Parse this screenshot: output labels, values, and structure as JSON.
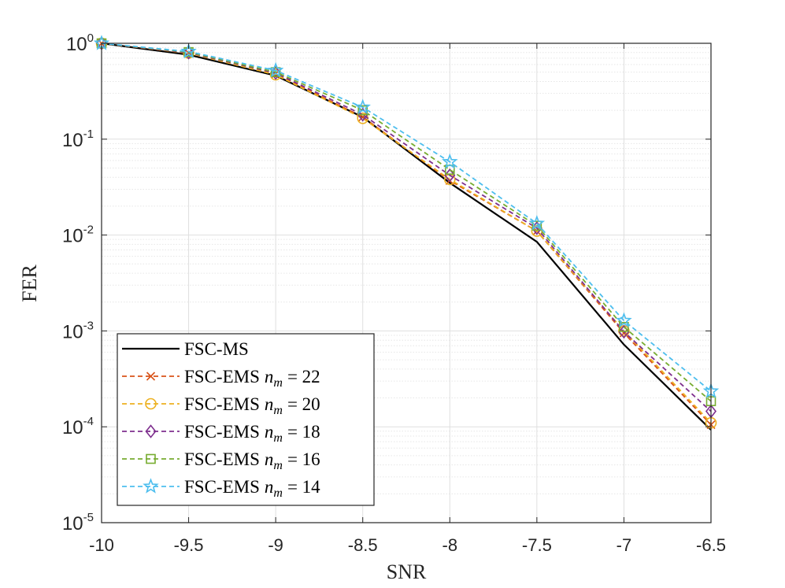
{
  "chart_data": {
    "type": "line",
    "title": "",
    "xlabel": "SNR",
    "ylabel": "FER",
    "xlim": [
      -10,
      -6.5
    ],
    "ylim": [
      1e-05,
      1
    ],
    "yscale": "log",
    "grid": true,
    "minor_grid": true,
    "legend_position": "bottom-left",
    "x": [
      -10,
      -9.5,
      -9,
      -8.5,
      -8,
      -7.5,
      -7,
      -6.5
    ],
    "x_ticks": [
      {
        "value": -10,
        "label": "-10"
      },
      {
        "value": -9.5,
        "label": "-9.5"
      },
      {
        "value": -9,
        "label": "-9"
      },
      {
        "value": -8.5,
        "label": "-8.5"
      },
      {
        "value": -8,
        "label": "-8"
      },
      {
        "value": -7.5,
        "label": "-7.5"
      },
      {
        "value": -7,
        "label": "-7"
      },
      {
        "value": -6.5,
        "label": "-6.5"
      }
    ],
    "y_ticks": [
      {
        "value": 1,
        "base": "10",
        "exp": "0"
      },
      {
        "value": 0.1,
        "base": "10",
        "exp": "-1"
      },
      {
        "value": 0.01,
        "base": "10",
        "exp": "-2"
      },
      {
        "value": 0.001,
        "base": "10",
        "exp": "-3"
      },
      {
        "value": 0.0001,
        "base": "10",
        "exp": "-4"
      },
      {
        "value": 1e-05,
        "base": "10",
        "exp": "-5"
      }
    ],
    "series": [
      {
        "name": "FSC-MS",
        "label": "FSC-MS",
        "param": "",
        "value_text": "",
        "color": "#000000",
        "dashed": false,
        "marker": "none",
        "values": [
          1.0,
          0.76,
          0.46,
          0.17,
          0.035,
          0.0085,
          0.00072,
          9.3e-05
        ]
      },
      {
        "name": "FSC-EMS n_m = 22",
        "label": "FSC-EMS",
        "param": "n",
        "param_sub": "m",
        "value_text": "= 22",
        "color": "#D95319",
        "dashed": true,
        "marker": "x",
        "values": [
          1.0,
          0.79,
          0.48,
          0.17,
          0.037,
          0.011,
          0.00095,
          0.000105
        ]
      },
      {
        "name": "FSC-EMS n_m = 20",
        "label": "FSC-EMS",
        "param": "n",
        "param_sub": "m",
        "value_text": "= 20",
        "color": "#EDB120",
        "dashed": true,
        "marker": "circle",
        "values": [
          1.0,
          0.79,
          0.47,
          0.165,
          0.038,
          0.011,
          0.001,
          0.00011
        ]
      },
      {
        "name": "FSC-EMS n_m = 18",
        "label": "FSC-EMS",
        "param": "n",
        "param_sub": "m",
        "value_text": "= 18",
        "color": "#7E2F8E",
        "dashed": true,
        "marker": "diamond",
        "values": [
          1.0,
          0.8,
          0.49,
          0.18,
          0.042,
          0.0118,
          0.00098,
          0.000145
        ]
      },
      {
        "name": "FSC-EMS n_m = 16",
        "label": "FSC-EMS",
        "param": "n",
        "param_sub": "m",
        "value_text": "= 16",
        "color": "#77AC30",
        "dashed": true,
        "marker": "square",
        "values": [
          1.0,
          0.81,
          0.5,
          0.2,
          0.048,
          0.0125,
          0.0011,
          0.000185
        ]
      },
      {
        "name": "FSC-EMS n_m = 14",
        "label": "FSC-EMS",
        "param": "n",
        "param_sub": "m",
        "value_text": "= 14",
        "color": "#4DBEEE",
        "dashed": true,
        "marker": "star",
        "values": [
          1.0,
          0.82,
          0.52,
          0.215,
          0.058,
          0.0132,
          0.00128,
          0.000235
        ]
      }
    ]
  }
}
